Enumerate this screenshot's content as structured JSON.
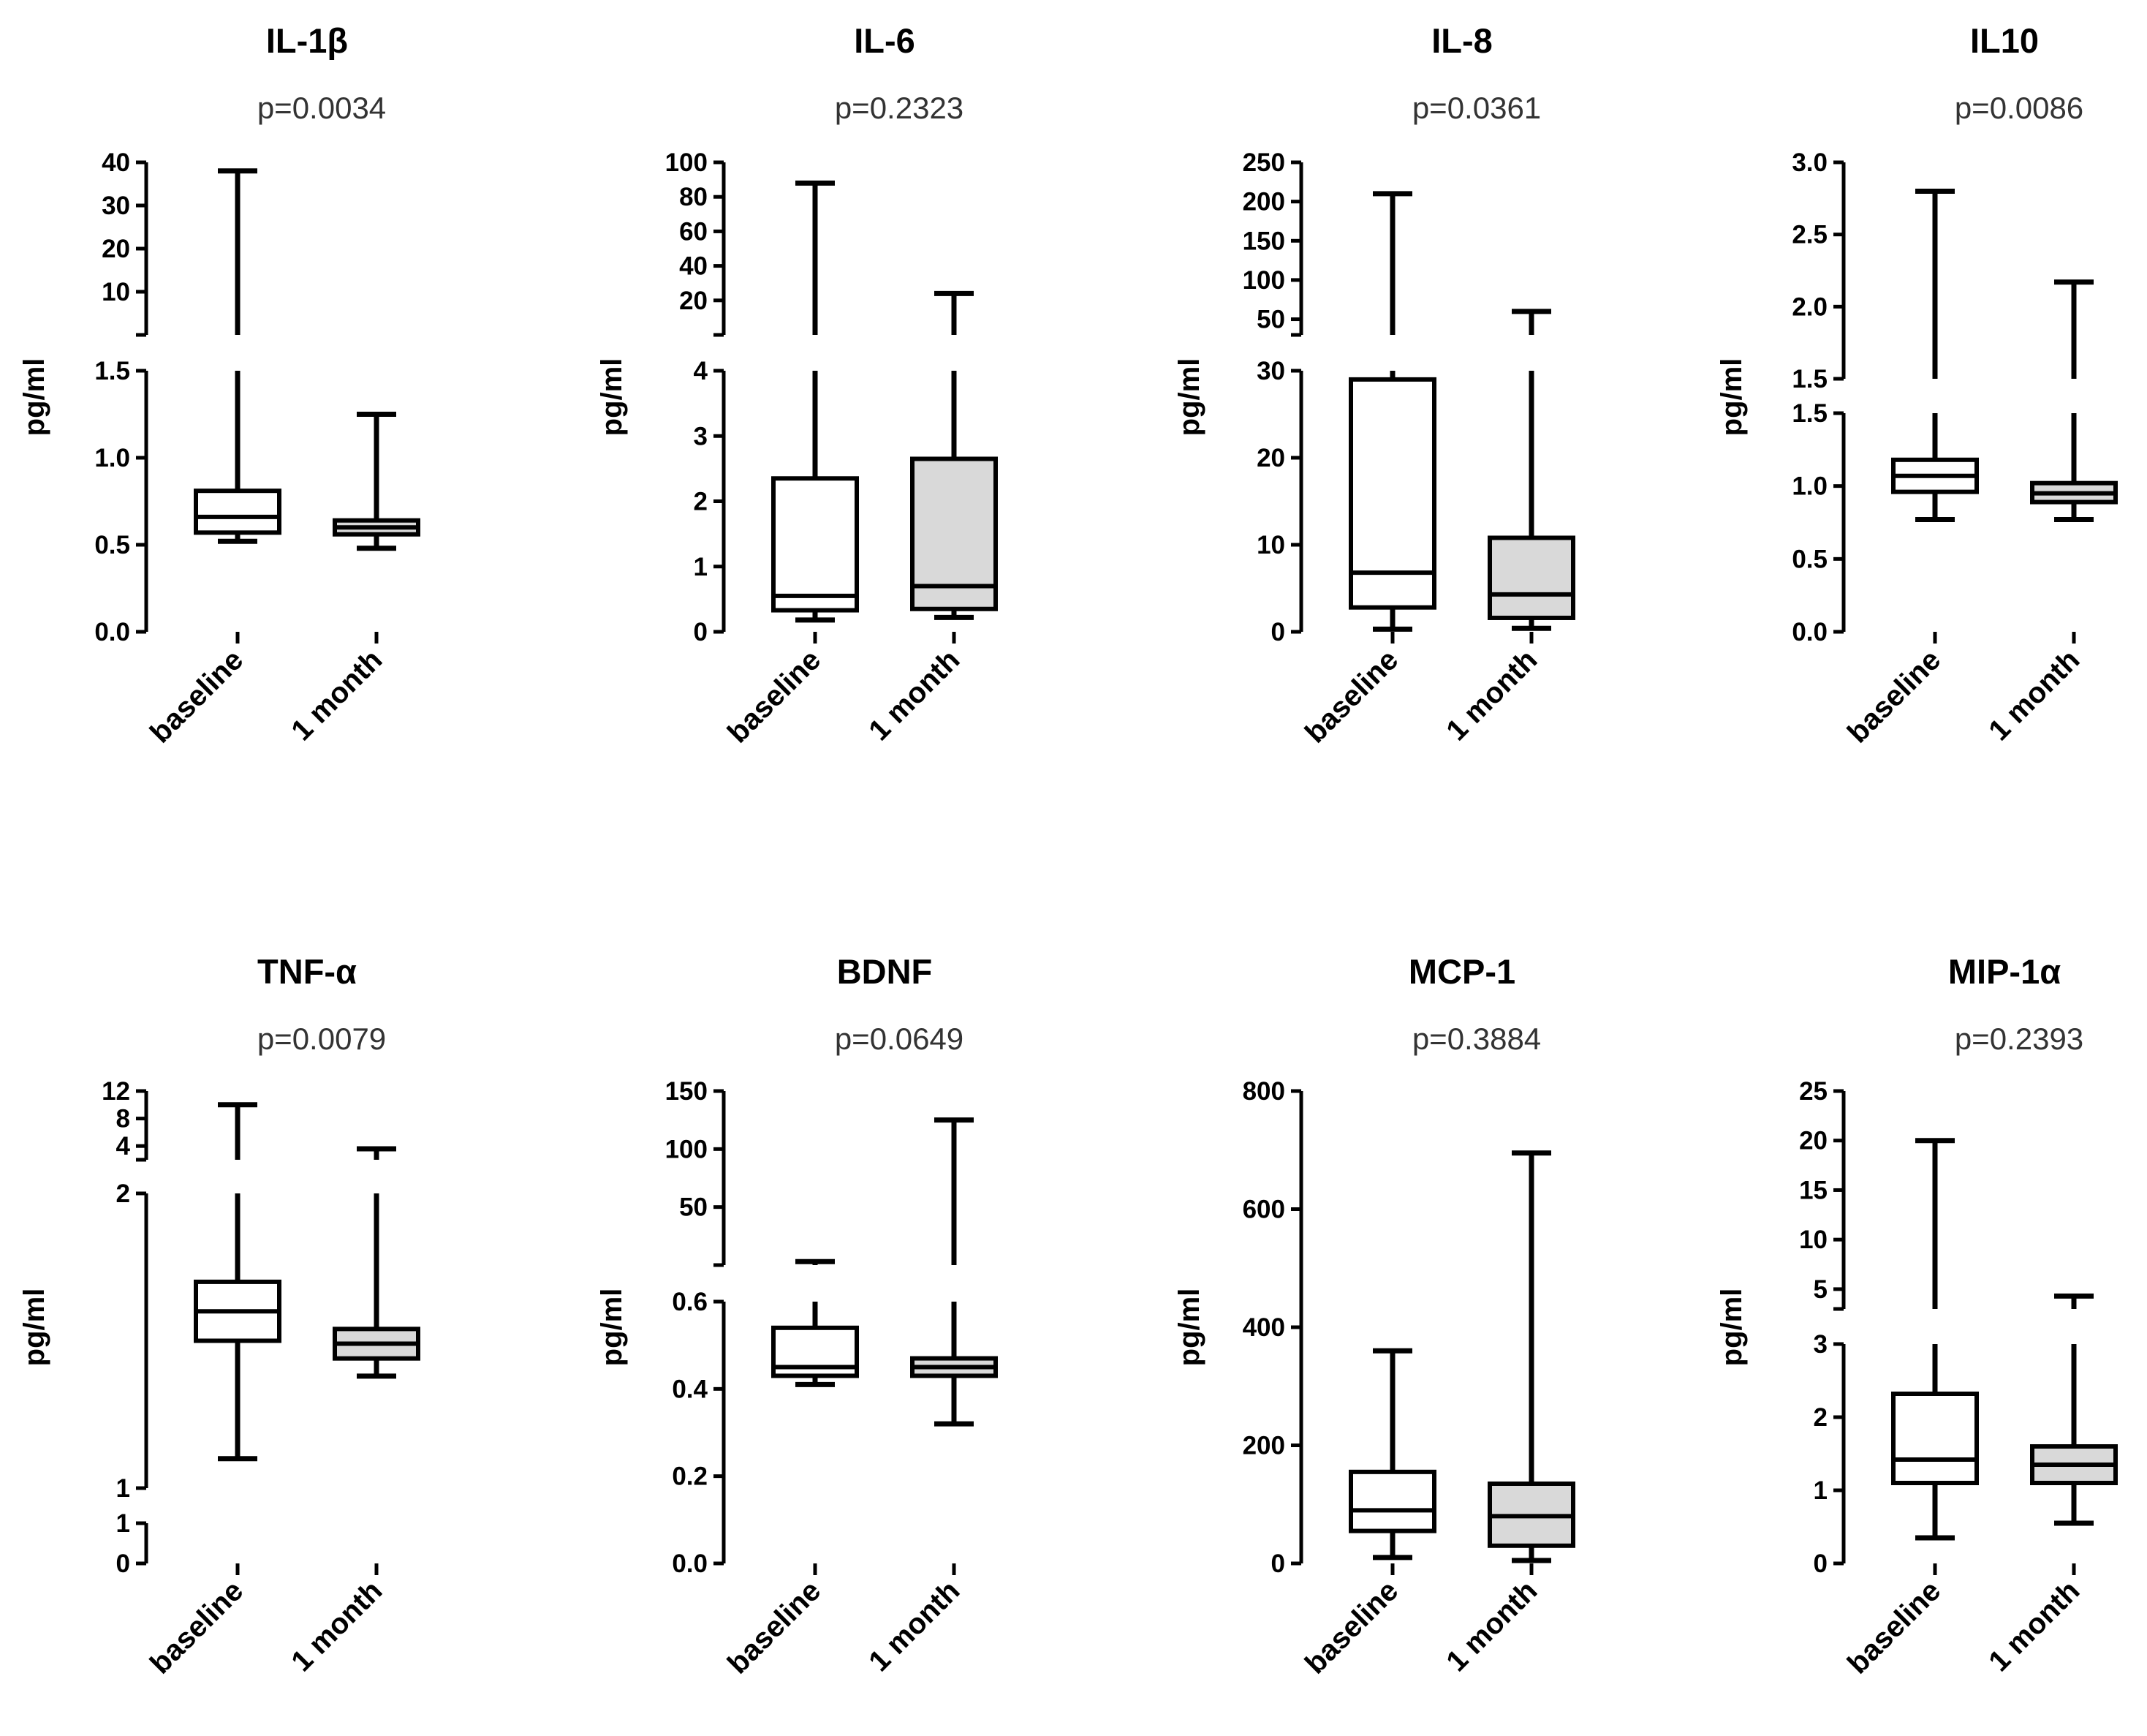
{
  "figure": {
    "ylabel": "pg/ml",
    "categories": [
      "baseline",
      "1 month"
    ],
    "colors": {
      "baseline_fill": "#ffffff",
      "month_fill": "#d9d9d9",
      "stroke": "#000000"
    }
  },
  "chart_data": [
    {
      "type": "box",
      "title": "IL-1β",
      "subtitle": "p=0.0034",
      "ylabel": "pg/ml",
      "categories": [
        "baseline",
        "1 month"
      ],
      "axis_segments": [
        {
          "range": [
            0,
            1.5
          ],
          "ticks": [
            0.0,
            0.5,
            1.0,
            1.5
          ],
          "labels": [
            "0.0",
            "0.5",
            "1.0",
            "1.5"
          ]
        },
        {
          "range": [
            0,
            40
          ],
          "ticks": [
            10,
            20,
            30,
            40
          ],
          "labels": [
            "10",
            "20",
            "30",
            "40"
          ]
        }
      ],
      "series": [
        {
          "name": "baseline",
          "min": 0.52,
          "q1": 0.57,
          "median": 0.66,
          "q3": 0.81,
          "max": 38
        },
        {
          "name": "1 month",
          "min": 0.48,
          "q1": 0.56,
          "median": 0.6,
          "q3": 0.64,
          "max": 1.25
        }
      ]
    },
    {
      "type": "box",
      "title": "IL-6",
      "subtitle": "p=0.2323",
      "ylabel": "pg/ml",
      "categories": [
        "baseline",
        "1 month"
      ],
      "axis_segments": [
        {
          "range": [
            0,
            4
          ],
          "ticks": [
            0,
            1,
            2,
            3,
            4
          ],
          "labels": [
            "0",
            "1",
            "2",
            "3",
            "4"
          ]
        },
        {
          "range": [
            0,
            100
          ],
          "ticks": [
            20,
            40,
            60,
            80,
            100
          ],
          "labels": [
            "20",
            "40",
            "60",
            "80",
            "100"
          ]
        }
      ],
      "series": [
        {
          "name": "baseline",
          "min": 0.18,
          "q1": 0.33,
          "median": 0.55,
          "q3": 2.35,
          "max": 88
        },
        {
          "name": "1 month",
          "min": 0.22,
          "q1": 0.35,
          "median": 0.7,
          "q3": 2.65,
          "max": 24
        }
      ]
    },
    {
      "type": "box",
      "title": "IL-8",
      "subtitle": "p=0.0361",
      "ylabel": "pg/ml",
      "categories": [
        "baseline",
        "1 month"
      ],
      "axis_segments": [
        {
          "range": [
            0,
            30
          ],
          "ticks": [
            0,
            10,
            20,
            30
          ],
          "labels": [
            "0",
            "10",
            "20",
            "30"
          ]
        },
        {
          "range": [
            30,
            250
          ],
          "ticks": [
            50,
            100,
            150,
            200,
            250
          ],
          "labels": [
            "50",
            "100",
            "150",
            "200",
            "250"
          ]
        }
      ],
      "series": [
        {
          "name": "baseline",
          "min": 0.3,
          "q1": 2.8,
          "median": 6.8,
          "q3": 29,
          "max": 210
        },
        {
          "name": "1 month",
          "min": 0.4,
          "q1": 1.6,
          "median": 4.3,
          "q3": 10.8,
          "max": 60
        }
      ]
    },
    {
      "type": "box",
      "title": "IL10",
      "subtitle": "p=0.0086",
      "ylabel": "pg/ml",
      "categories": [
        "baseline",
        "1 month"
      ],
      "axis_segments": [
        {
          "range": [
            0,
            1.5
          ],
          "ticks": [
            0.0,
            0.5,
            1.0,
            1.5
          ],
          "labels": [
            "0.0",
            "0.5",
            "1.0",
            "1.5"
          ]
        },
        {
          "range": [
            1.5,
            3.0
          ],
          "ticks": [
            1.5,
            2.0,
            2.5,
            3.0
          ],
          "labels": [
            "1.5",
            "2.0",
            "2.5",
            "3.0"
          ]
        }
      ],
      "series": [
        {
          "name": "baseline",
          "min": 0.77,
          "q1": 0.96,
          "median": 1.07,
          "q3": 1.18,
          "max": 2.8
        },
        {
          "name": "1 month",
          "min": 0.77,
          "q1": 0.89,
          "median": 0.95,
          "q3": 1.02,
          "max": 2.17
        }
      ]
    },
    {
      "type": "box",
      "title": "TNF-α",
      "subtitle": "p=0.0079",
      "ylabel": "pg/ml",
      "categories": [
        "baseline",
        "1 month"
      ],
      "axis_segments": [
        {
          "range": [
            0,
            1
          ],
          "ticks": [
            0,
            1
          ],
          "labels": [
            "0",
            "1"
          ]
        },
        {
          "range": [
            1,
            2
          ],
          "ticks": [
            1,
            2
          ],
          "labels": [
            "1",
            "2"
          ]
        },
        {
          "range": [
            2,
            12
          ],
          "ticks": [
            4,
            8,
            12
          ],
          "labels": [
            "4",
            "8",
            "12"
          ]
        }
      ],
      "series": [
        {
          "name": "baseline",
          "min": 1.1,
          "q1": 1.5,
          "median": 1.6,
          "q3": 1.7,
          "max": 10
        },
        {
          "name": "1 month",
          "min": 1.38,
          "q1": 1.44,
          "median": 1.49,
          "q3": 1.54,
          "max": 3.6
        }
      ]
    },
    {
      "type": "box",
      "title": "BDNF",
      "subtitle": "p=0.0649",
      "ylabel": "pg/ml",
      "categories": [
        "baseline",
        "1 month"
      ],
      "axis_segments": [
        {
          "range": [
            0,
            0.6
          ],
          "ticks": [
            0.0,
            0.2,
            0.4,
            0.6
          ],
          "labels": [
            "0.0",
            "0.2",
            "0.4",
            "0.6"
          ]
        },
        {
          "range": [
            0,
            150
          ],
          "ticks": [
            50,
            100,
            150
          ],
          "labels": [
            "50",
            "100",
            "150"
          ]
        }
      ],
      "series": [
        {
          "name": "baseline",
          "min": 0.41,
          "q1": 0.43,
          "median": 0.45,
          "q3": 0.54,
          "max": 3
        },
        {
          "name": "1 month",
          "min": 0.32,
          "q1": 0.43,
          "median": 0.45,
          "q3": 0.47,
          "max": 125
        }
      ]
    },
    {
      "type": "box",
      "title": "MCP-1",
      "subtitle": "p=0.3884",
      "ylabel": "pg/ml",
      "categories": [
        "baseline",
        "1 month"
      ],
      "axis_segments": [
        {
          "range": [
            0,
            800
          ],
          "ticks": [
            0,
            200,
            400,
            600,
            800
          ],
          "labels": [
            "0",
            "200",
            "400",
            "600",
            "800"
          ]
        }
      ],
      "series": [
        {
          "name": "baseline",
          "min": 10,
          "q1": 55,
          "median": 90,
          "q3": 155,
          "max": 360
        },
        {
          "name": "1 month",
          "min": 5,
          "q1": 30,
          "median": 80,
          "q3": 135,
          "max": 695
        }
      ]
    },
    {
      "type": "box",
      "title": "MIP-1α",
      "subtitle": "p=0.2393",
      "ylabel": "pg/ml",
      "categories": [
        "baseline",
        "1 month"
      ],
      "axis_segments": [
        {
          "range": [
            0,
            3
          ],
          "ticks": [
            0,
            1,
            2,
            3
          ],
          "labels": [
            "0",
            "1",
            "2",
            "3"
          ]
        },
        {
          "range": [
            3,
            25
          ],
          "ticks": [
            5,
            10,
            15,
            20,
            25
          ],
          "labels": [
            "5",
            "10",
            "15",
            "20",
            "25"
          ]
        }
      ],
      "series": [
        {
          "name": "baseline",
          "min": 0.35,
          "q1": 1.1,
          "median": 1.42,
          "q3": 2.32,
          "max": 20
        },
        {
          "name": "1 month",
          "min": 0.55,
          "q1": 1.1,
          "median": 1.35,
          "q3": 1.6,
          "max": 4.3
        }
      ]
    }
  ]
}
